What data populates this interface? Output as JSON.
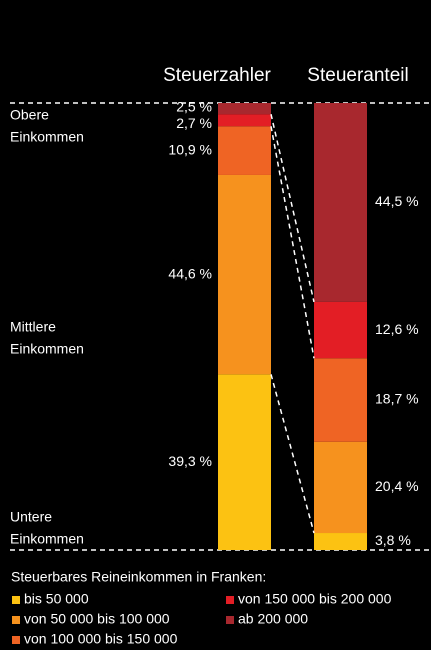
{
  "chart_data": {
    "type": "stacked-bar",
    "categories": [
      "Steuerzahler",
      "Steueranteil"
    ],
    "ylim": [
      0,
      100
    ],
    "annotations": [
      [
        "Obere",
        "Einkommen"
      ],
      [
        "Mittlere",
        "Einkommen"
      ],
      [
        "Untere",
        "Einkommen"
      ]
    ],
    "legend_title": "Steuerbares Reineinkommen in Franken:",
    "series": [
      {
        "name": "bis 50 000",
        "color": "#fcc212",
        "values": [
          39.3,
          3.8
        ],
        "value_labels": [
          "39,3 %",
          "3,8 %"
        ]
      },
      {
        "name": "von 50 000 bis 100 000",
        "color": "#f6921e",
        "values": [
          44.6,
          20.4
        ],
        "value_labels": [
          "44,6 %",
          "20,4 %"
        ]
      },
      {
        "name": "von 100 000 bis 150 000",
        "color": "#ef6424",
        "values": [
          10.9,
          18.7
        ],
        "value_labels": [
          "10,9 %",
          "18,7 %"
        ]
      },
      {
        "name": "von 150 000 bis 200 000",
        "color": "#e31e25",
        "values": [
          2.7,
          12.6
        ],
        "value_labels": [
          "2,7 %",
          "12,6 %"
        ]
      },
      {
        "name": "ab 200 000",
        "color": "#a8282e",
        "values": [
          2.5,
          44.5
        ],
        "value_labels": [
          "2,5 %",
          "44,5 %"
        ]
      }
    ]
  }
}
